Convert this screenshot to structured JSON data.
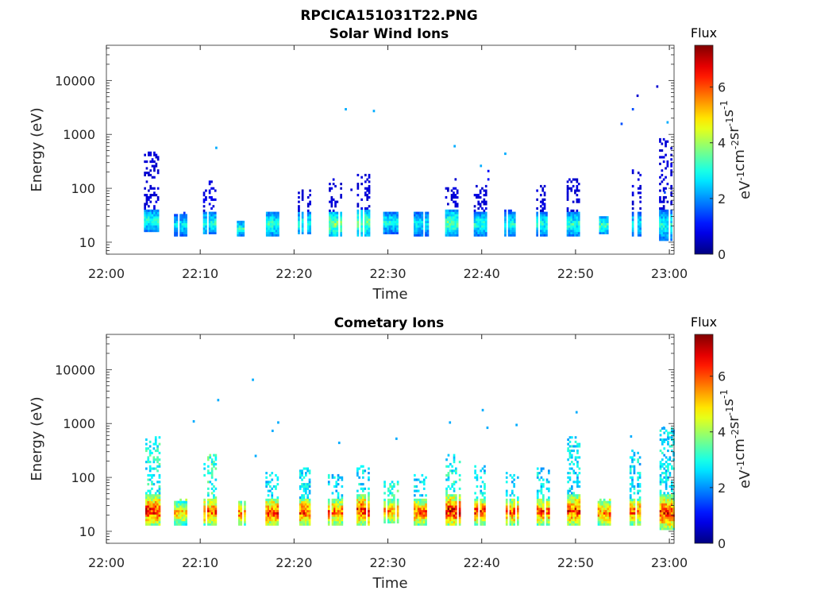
{
  "figure": {
    "filename": "RPCICA151031T22.PNG"
  },
  "colorbar": {
    "title": "Flux",
    "label": "eV-1cm-2sr-1s-1",
    "ticks": [
      "0",
      "2",
      "4",
      "6"
    ],
    "range": [
      0,
      7.5
    ],
    "colormap": "jet"
  },
  "chart_data": [
    {
      "type": "heatmap",
      "title": "Solar Wind Ions",
      "xlabel": "Time",
      "ylabel": "Energy (eV)",
      "x_ticks": [
        "22:00",
        "22:10",
        "22:20",
        "22:30",
        "22:40",
        "22:50",
        "23:00"
      ],
      "x_range_minutes": [
        0,
        60.5
      ],
      "y_scale": "log",
      "y_ticks": [
        "10",
        "100",
        "1000",
        "10000"
      ],
      "ylim": [
        6,
        45000
      ],
      "bursts": [
        {
          "t": 4.8,
          "w": 1.6,
          "core": [
            15,
            40
          ],
          "peak": 3.4,
          "tail_top": 450,
          "tail_flux": 0.6
        },
        {
          "t": 7.7,
          "w": 1.4,
          "core": [
            12,
            32
          ],
          "peak": 3.0,
          "tail_top": 34,
          "tail_flux": 1.2
        },
        {
          "t": 10.9,
          "w": 1.2,
          "core": [
            13,
            36
          ],
          "peak": 3.3,
          "tail_top": 130,
          "tail_flux": 0.7
        },
        {
          "t": 14.3,
          "w": 0.8,
          "core": [
            12,
            24
          ],
          "peak": 3.4,
          "tail_top": 20,
          "tail_flux": 3.0
        },
        {
          "t": 17.6,
          "w": 1.2,
          "core": [
            12,
            36
          ],
          "peak": 3.5,
          "tail_top": 34,
          "tail_flux": 3.0
        },
        {
          "t": 21.0,
          "w": 1.2,
          "core": [
            13,
            36
          ],
          "peak": 3.4,
          "tail_top": 90,
          "tail_flux": 0.6
        },
        {
          "t": 24.2,
          "w": 1.4,
          "core": [
            12,
            36
          ],
          "peak": 4.2,
          "tail_top": 150,
          "tail_flux": 0.6
        },
        {
          "t": 27.3,
          "w": 1.2,
          "core": [
            12,
            40
          ],
          "peak": 4.0,
          "tail_top": 170,
          "tail_flux": 0.6
        },
        {
          "t": 30.2,
          "w": 1.4,
          "core": [
            14,
            36
          ],
          "peak": 3.3,
          "tail_top": 34,
          "tail_flux": 1.2
        },
        {
          "t": 33.5,
          "w": 1.5,
          "core": [
            12,
            36
          ],
          "peak": 3.0,
          "tail_top": 34,
          "tail_flux": 1.2
        },
        {
          "t": 36.8,
          "w": 1.4,
          "core": [
            12,
            40
          ],
          "peak": 3.8,
          "tail_top": 100,
          "tail_flux": 0.6
        },
        {
          "t": 39.8,
          "w": 1.3,
          "core": [
            12,
            36
          ],
          "peak": 3.3,
          "tail_top": 110,
          "tail_flux": 0.6
        },
        {
          "t": 43.0,
          "w": 1.2,
          "core": [
            12,
            36
          ],
          "peak": 3.2,
          "tail_top": 40,
          "tail_flux": 1.2
        },
        {
          "t": 46.4,
          "w": 1.2,
          "core": [
            12,
            36
          ],
          "peak": 3.3,
          "tail_top": 110,
          "tail_flux": 0.6
        },
        {
          "t": 49.7,
          "w": 1.3,
          "core": [
            12,
            36
          ],
          "peak": 3.4,
          "tail_top": 150,
          "tail_flux": 0.6
        },
        {
          "t": 53.0,
          "w": 1.0,
          "core": [
            13,
            30
          ],
          "peak": 3.6,
          "tail_top": 24,
          "tail_flux": 3.0
        },
        {
          "t": 56.4,
          "w": 1.2,
          "core": [
            12,
            36
          ],
          "peak": 3.0,
          "tail_top": 220,
          "tail_flux": 0.6
        },
        {
          "t": 59.6,
          "w": 1.4,
          "core": [
            10,
            40
          ],
          "peak": 3.2,
          "tail_top": 800,
          "tail_flux": 0.6
        }
      ],
      "scatter": [
        {
          "t": 11.6,
          "e": 540,
          "f": 2.2
        },
        {
          "t": 25.4,
          "e": 2800,
          "f": 2.2
        },
        {
          "t": 28.4,
          "e": 2600,
          "f": 2.2
        },
        {
          "t": 37.0,
          "e": 580,
          "f": 2.2
        },
        {
          "t": 37.1,
          "e": 140,
          "f": 0.6
        },
        {
          "t": 39.8,
          "e": 250,
          "f": 2.2
        },
        {
          "t": 40.6,
          "e": 200,
          "f": 1.0
        },
        {
          "t": 40.6,
          "e": 140,
          "f": 1.0
        },
        {
          "t": 42.4,
          "e": 420,
          "f": 2.2
        },
        {
          "t": 54.8,
          "e": 1500,
          "f": 1.5
        },
        {
          "t": 56.0,
          "e": 2800,
          "f": 1.5
        },
        {
          "t": 56.5,
          "e": 5000,
          "f": 0.6
        },
        {
          "t": 58.6,
          "e": 7400,
          "f": 0.6
        },
        {
          "t": 59.7,
          "e": 1600,
          "f": 2.2
        },
        {
          "t": 59.4,
          "e": 80,
          "f": 1.5
        },
        {
          "t": 26.0,
          "e": 90,
          "f": 0.6
        }
      ]
    },
    {
      "type": "heatmap",
      "title": "Cometary Ions",
      "xlabel": "Time",
      "ylabel": "Energy (eV)",
      "x_ticks": [
        "22:00",
        "22:10",
        "22:20",
        "22:30",
        "22:40",
        "22:50",
        "23:00"
      ],
      "x_range_minutes": [
        0,
        60.5
      ],
      "y_scale": "log",
      "y_ticks": [
        "10",
        "100",
        "1000",
        "10000"
      ],
      "ylim": [
        6,
        45000
      ],
      "bursts": [
        {
          "t": 4.8,
          "w": 1.7,
          "core": [
            12,
            45
          ],
          "peak": 7.0,
          "tail_top": 550,
          "tail_flux": 2.8
        },
        {
          "t": 7.7,
          "w": 1.4,
          "core": [
            12,
            36
          ],
          "peak": 5.6,
          "tail_top": 40,
          "tail_flux": 3.5
        },
        {
          "t": 11.0,
          "w": 1.3,
          "core": [
            12,
            40
          ],
          "peak": 6.5,
          "tail_top": 250,
          "tail_flux": 3.0
        },
        {
          "t": 14.3,
          "w": 0.9,
          "core": [
            12,
            36
          ],
          "peak": 6.0,
          "tail_top": 30,
          "tail_flux": 3.5
        },
        {
          "t": 17.6,
          "w": 1.3,
          "core": [
            12,
            40
          ],
          "peak": 6.8,
          "tail_top": 120,
          "tail_flux": 2.5
        },
        {
          "t": 21.0,
          "w": 1.3,
          "core": [
            12,
            40
          ],
          "peak": 6.8,
          "tail_top": 150,
          "tail_flux": 2.5
        },
        {
          "t": 24.3,
          "w": 1.4,
          "core": [
            12,
            40
          ],
          "peak": 6.3,
          "tail_top": 110,
          "tail_flux": 2.5
        },
        {
          "t": 27.3,
          "w": 1.3,
          "core": [
            12,
            45
          ],
          "peak": 7.0,
          "tail_top": 160,
          "tail_flux": 2.5
        },
        {
          "t": 30.3,
          "w": 1.5,
          "core": [
            13,
            40
          ],
          "peak": 6.0,
          "tail_top": 80,
          "tail_flux": 3.0
        },
        {
          "t": 33.5,
          "w": 1.5,
          "core": [
            12,
            40
          ],
          "peak": 6.4,
          "tail_top": 110,
          "tail_flux": 2.5
        },
        {
          "t": 36.9,
          "w": 1.5,
          "core": [
            12,
            45
          ],
          "peak": 7.3,
          "tail_top": 250,
          "tail_flux": 2.8
        },
        {
          "t": 39.9,
          "w": 1.4,
          "core": [
            12,
            40
          ],
          "peak": 6.8,
          "tail_top": 160,
          "tail_flux": 2.5
        },
        {
          "t": 43.2,
          "w": 1.3,
          "core": [
            12,
            40
          ],
          "peak": 6.5,
          "tail_top": 120,
          "tail_flux": 2.5
        },
        {
          "t": 46.5,
          "w": 1.3,
          "core": [
            12,
            40
          ],
          "peak": 6.5,
          "tail_top": 150,
          "tail_flux": 2.5
        },
        {
          "t": 49.8,
          "w": 1.4,
          "core": [
            12,
            45
          ],
          "peak": 6.8,
          "tail_top": 550,
          "tail_flux": 2.5
        },
        {
          "t": 53.0,
          "w": 1.3,
          "core": [
            12,
            36
          ],
          "peak": 6.2,
          "tail_top": 40,
          "tail_flux": 3.5
        },
        {
          "t": 56.4,
          "w": 1.3,
          "core": [
            12,
            40
          ],
          "peak": 6.5,
          "tail_top": 350,
          "tail_flux": 2.5
        },
        {
          "t": 59.7,
          "w": 1.5,
          "core": [
            10,
            45
          ],
          "peak": 6.8,
          "tail_top": 800,
          "tail_flux": 2.5
        }
      ],
      "scatter": [
        {
          "t": 9.2,
          "e": 1050,
          "f": 2.2
        },
        {
          "t": 11.8,
          "e": 2600,
          "f": 2.2
        },
        {
          "t": 15.5,
          "e": 6200,
          "f": 2.2
        },
        {
          "t": 15.8,
          "e": 240,
          "f": 2.2
        },
        {
          "t": 18.2,
          "e": 1000,
          "f": 2.2
        },
        {
          "t": 24.7,
          "e": 420,
          "f": 2.2
        },
        {
          "t": 30.8,
          "e": 500,
          "f": 2.2
        },
        {
          "t": 36.5,
          "e": 1000,
          "f": 2.2
        },
        {
          "t": 40.0,
          "e": 1700,
          "f": 2.2
        },
        {
          "t": 40.5,
          "e": 800,
          "f": 2.2
        },
        {
          "t": 43.6,
          "e": 900,
          "f": 2.2
        },
        {
          "t": 50.0,
          "e": 1550,
          "f": 2.2
        },
        {
          "t": 55.8,
          "e": 550,
          "f": 2.2
        },
        {
          "t": 59.3,
          "e": 800,
          "f": 2.2
        },
        {
          "t": 59.8,
          "e": 500,
          "f": 2.2
        },
        {
          "t": 17.6,
          "e": 700,
          "f": 2.2
        }
      ]
    }
  ]
}
